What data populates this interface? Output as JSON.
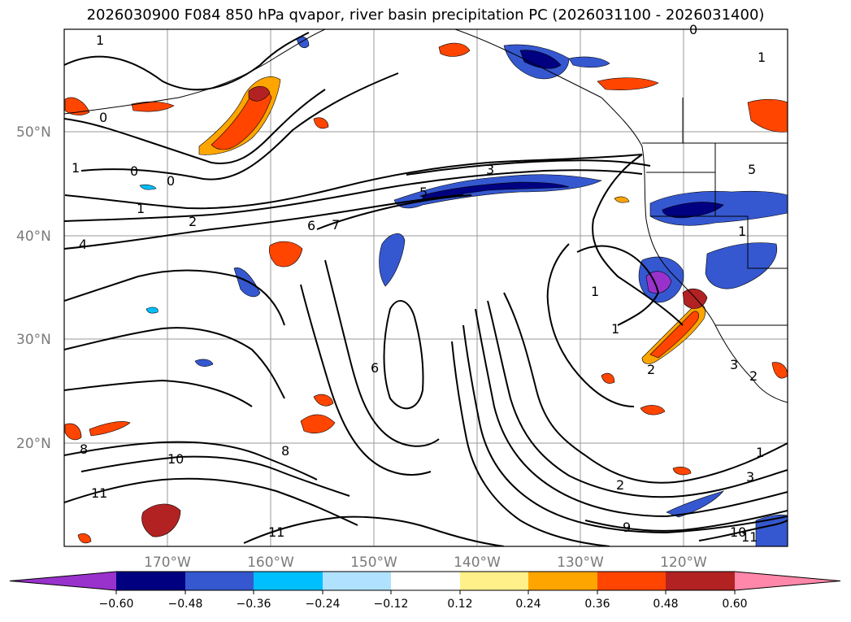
{
  "title": "2026030900 F084 850 hPa qvapor, river basin precipitation PC (2026031100 - 2026031400)",
  "latitudes": [
    "50°N",
    "40°N",
    "30°N",
    "20°N"
  ],
  "longitudes": [
    "170°W",
    "160°W",
    "150°W",
    "140°W",
    "130°W",
    "120°W"
  ],
  "colorbar": {
    "labels": [
      "−0.60",
      "−0.48",
      "−0.36",
      "−0.24",
      "−0.12",
      "0.12",
      "0.24",
      "0.36",
      "0.48",
      "0.60"
    ],
    "colors": [
      "#9932cc",
      "#000080",
      "#3558d0",
      "#00bfff",
      "#b0e2ff",
      "#ffffff",
      "#fff08a",
      "#ffa500",
      "#ff4500",
      "#b22222",
      "#ff88aa"
    ]
  },
  "contour_labels": [
    "1",
    "0",
    "0",
    "1",
    "1",
    "0",
    "2",
    "4",
    "3",
    "5",
    "6",
    "7",
    "1",
    "1",
    "6",
    "1",
    "2",
    "3",
    "2",
    "8",
    "8",
    "10",
    "11",
    "11",
    "9",
    "2",
    "3",
    "1",
    "1",
    "10",
    "11",
    "5",
    "0"
  ]
}
